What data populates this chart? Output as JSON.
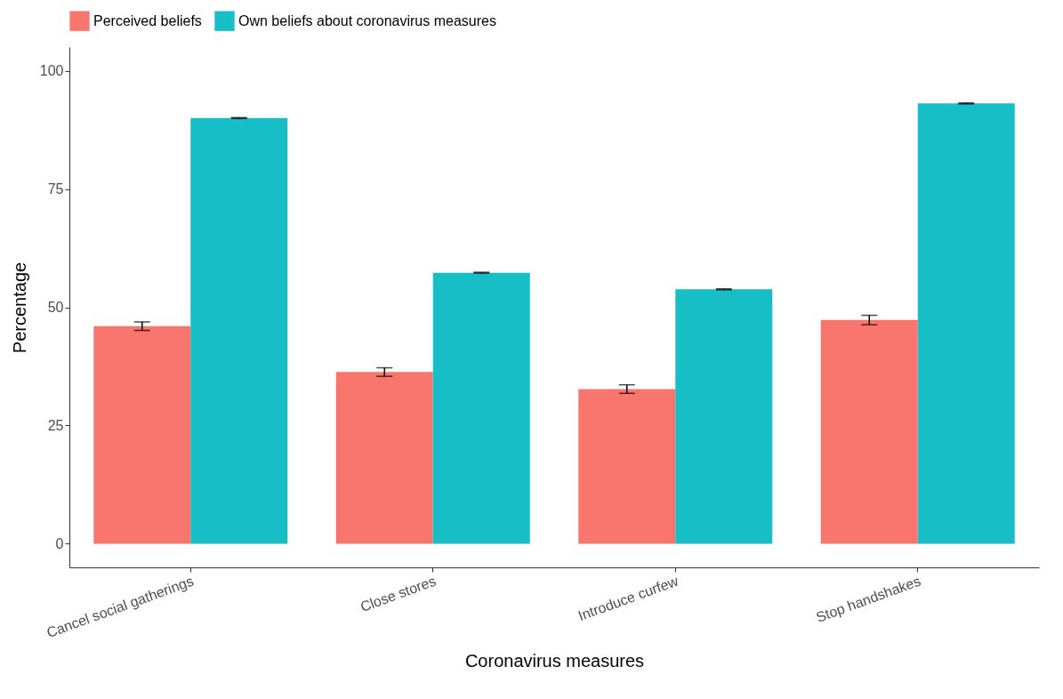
{
  "chart_data": {
    "type": "bar",
    "xlabel": "Coronavirus measures",
    "ylabel": "Percentage",
    "categories": [
      "Cancel social gatherings",
      "Close stores",
      "Introduce curfew",
      "Stop handshakes"
    ],
    "series": [
      {
        "name": "Perceived beliefs",
        "color": "#f8766d",
        "values": [
          46.0,
          36.3,
          32.7,
          47.3
        ],
        "errors": [
          0.9,
          0.9,
          0.9,
          1.0
        ]
      },
      {
        "name": "Own beliefs about coronavirus measures",
        "color": "#17bec5",
        "values": [
          90.0,
          57.3,
          53.8,
          93.1
        ],
        "errors": [
          0.1,
          0.1,
          0.1,
          0.1
        ]
      }
    ],
    "ylim": [
      -5,
      105
    ],
    "yticks": [
      0,
      25,
      50,
      75,
      100
    ],
    "grid": false,
    "legend": "top"
  }
}
